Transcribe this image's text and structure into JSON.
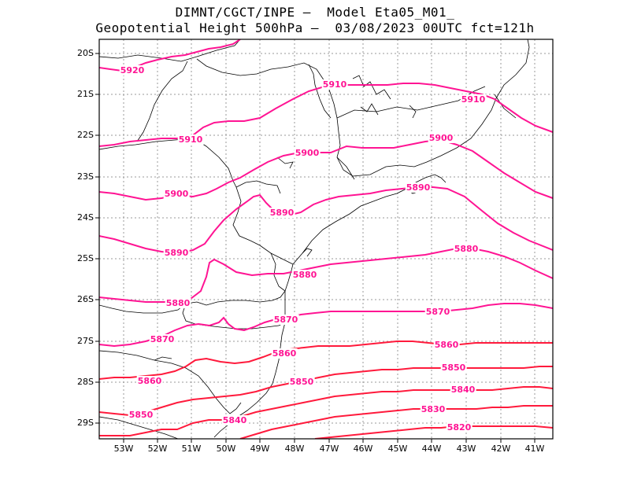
{
  "header": {
    "line1": "DIMNT/CGCT/INPE –  Model Eta05_M01_",
    "line2": "Geopotential Height 500hPa –  03/08/2023 00UTC fct=121h"
  },
  "map": {
    "lon_range": [
      -53.7,
      -40.55
    ],
    "lat_range": [
      -29.4,
      -19.5
    ],
    "lon_ticks": [
      "53W",
      "52W",
      "51W",
      "50W",
      "49W",
      "48W",
      "47W",
      "46W",
      "45W",
      "44W",
      "43W",
      "42W",
      "41W"
    ],
    "lat_ticks": [
      "20S",
      "21S",
      "22S",
      "23S",
      "24S",
      "25S",
      "26S",
      "27S",
      "28S",
      "29S"
    ],
    "colors": {
      "contour_high": "#ff1493",
      "contour_low": "#ff1a3c",
      "border": "#000000",
      "grid": "#999999"
    },
    "contours": [
      {
        "value": 5920,
        "label": "5920"
      },
      {
        "value": 5910,
        "labels": [
          "5910",
          "5910",
          "5910"
        ]
      },
      {
        "value": 5900,
        "labels": [
          "5900",
          "5900",
          "5900"
        ]
      },
      {
        "value": 5890,
        "labels": [
          "5890",
          "5890",
          "5890"
        ]
      },
      {
        "value": 5880,
        "labels": [
          "5880",
          "5880",
          "5880"
        ]
      },
      {
        "value": 5870,
        "labels": [
          "5870",
          "5870",
          "5870"
        ]
      },
      {
        "value": 5860,
        "labels": [
          "5860",
          "5860",
          "5860"
        ]
      },
      {
        "value": 5850,
        "labels": [
          "5850",
          "5850",
          "5850"
        ]
      },
      {
        "value": 5840,
        "labels": [
          "5840",
          "5840"
        ]
      },
      {
        "value": 5830,
        "label": "5830"
      },
      {
        "value": 5820,
        "label": "5820"
      }
    ]
  }
}
